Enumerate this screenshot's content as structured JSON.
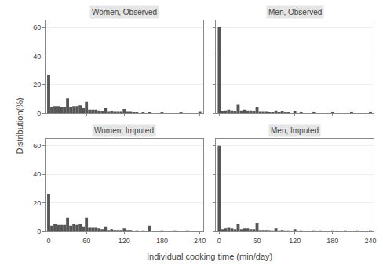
{
  "xlabel": "Individual cooking time (min/day)",
  "ylabel": "Distribution(%)",
  "chart_data": [
    {
      "type": "bar",
      "title": "Women, Observed",
      "color": "#555555",
      "grid": true,
      "tick_labels": "y",
      "xlim": [
        -5,
        245
      ],
      "xticks": [
        0,
        60,
        120,
        180,
        240
      ],
      "ylim": [
        0,
        65
      ],
      "yticks": [
        0,
        20,
        40,
        60
      ],
      "x": [
        0,
        5,
        10,
        15,
        20,
        25,
        30,
        35,
        40,
        45,
        50,
        55,
        60,
        65,
        70,
        75,
        80,
        85,
        90,
        95,
        100,
        105,
        110,
        115,
        120,
        125,
        130,
        135,
        140,
        150,
        160,
        180,
        210,
        240
      ],
      "values": [
        27.0,
        4.0,
        5.0,
        5.0,
        4.5,
        4.5,
        10.5,
        4.0,
        5.0,
        5.0,
        5.5,
        3.5,
        8.0,
        2.5,
        2.5,
        2.5,
        2.0,
        1.5,
        3.5,
        1.0,
        1.5,
        1.0,
        1.0,
        1.0,
        3.0,
        1.0,
        1.0,
        0.5,
        0.5,
        0.5,
        0.5,
        0.5,
        0.5,
        1.0
      ]
    },
    {
      "type": "bar",
      "title": "Men, Observed",
      "color": "#555555",
      "grid": true,
      "tick_labels": false,
      "xlim": [
        -5,
        245
      ],
      "xticks": [
        0,
        60,
        120,
        180,
        240
      ],
      "ylim": [
        0,
        65
      ],
      "yticks": [
        0,
        20,
        40,
        60
      ],
      "x": [
        0,
        5,
        10,
        15,
        20,
        25,
        30,
        35,
        40,
        45,
        50,
        55,
        60,
        65,
        70,
        75,
        80,
        85,
        90,
        95,
        100,
        105,
        110,
        120,
        130,
        150,
        180,
        210,
        240
      ],
      "values": [
        60.5,
        1.5,
        2.0,
        2.5,
        2.0,
        1.5,
        6.0,
        2.0,
        2.5,
        2.0,
        2.0,
        1.5,
        4.5,
        1.0,
        1.0,
        1.0,
        0.8,
        0.5,
        2.0,
        0.5,
        1.5,
        0.5,
        0.5,
        1.5,
        0.5,
        0.5,
        0.5,
        0.3,
        0.3
      ]
    },
    {
      "type": "bar",
      "title": "Women, Imputed",
      "color": "#555555",
      "grid": true,
      "xlim": [
        -5,
        245
      ],
      "xticks": [
        0,
        60,
        120,
        180,
        240
      ],
      "ylim": [
        0,
        65
      ],
      "yticks": [
        0,
        20,
        40,
        60
      ],
      "x": [
        0,
        5,
        10,
        15,
        20,
        25,
        30,
        35,
        40,
        45,
        50,
        55,
        60,
        65,
        70,
        75,
        80,
        85,
        90,
        95,
        100,
        105,
        110,
        115,
        120,
        125,
        130,
        140,
        150,
        160,
        180,
        200,
        220
      ],
      "values": [
        26.0,
        4.0,
        5.0,
        4.5,
        4.5,
        4.5,
        9.5,
        4.0,
        5.0,
        4.5,
        5.0,
        3.5,
        9.5,
        2.5,
        2.5,
        2.5,
        2.0,
        1.5,
        3.5,
        1.0,
        1.5,
        1.0,
        1.0,
        1.0,
        2.0,
        1.0,
        1.0,
        0.5,
        0.5,
        4.0,
        0.5,
        0.5,
        0.5
      ]
    },
    {
      "type": "bar",
      "title": "Men, Imputed",
      "color": "#555555",
      "grid": true,
      "tick_labels": "x",
      "xlim": [
        -5,
        245
      ],
      "xticks": [
        0,
        60,
        120,
        180,
        240
      ],
      "ylim": [
        0,
        65
      ],
      "yticks": [
        0,
        20,
        40,
        60
      ],
      "x": [
        0,
        5,
        10,
        15,
        20,
        25,
        30,
        35,
        40,
        45,
        50,
        55,
        60,
        65,
        70,
        75,
        80,
        85,
        90,
        95,
        100,
        105,
        110,
        120,
        130,
        150,
        160,
        180,
        200,
        220,
        240
      ],
      "values": [
        60.0,
        1.5,
        2.0,
        2.5,
        2.0,
        1.5,
        5.5,
        1.5,
        2.0,
        2.0,
        1.5,
        1.5,
        6.0,
        1.0,
        1.0,
        1.0,
        0.8,
        0.5,
        2.0,
        0.5,
        1.0,
        0.5,
        0.5,
        1.5,
        0.5,
        0.5,
        0.5,
        0.5,
        0.3,
        0.3,
        0.3
      ]
    }
  ]
}
